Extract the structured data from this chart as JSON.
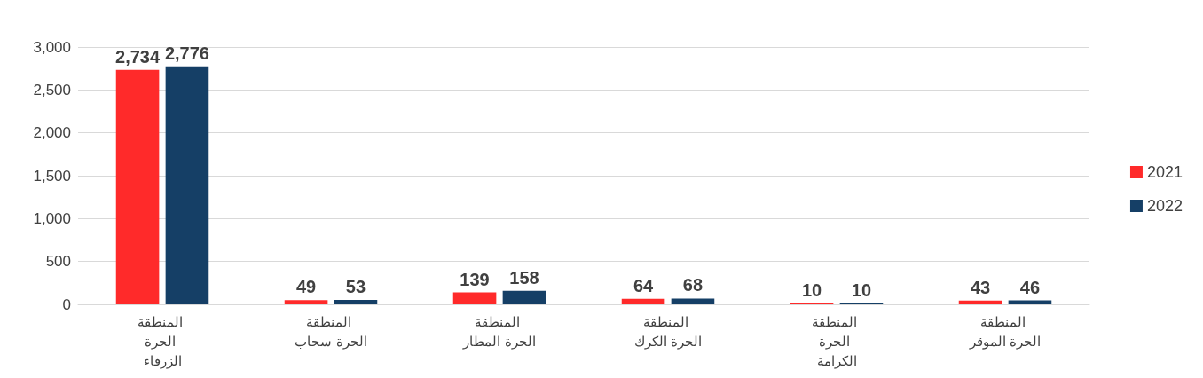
{
  "chart_data": {
    "type": "bar",
    "categories": [
      "المنطقة الحرة الزرقاء",
      "المنطقة الحرة سحاب",
      "المنطقة الحرة المطار",
      "المنطقة الحرة الكرك",
      "المنطقة الحرة الكرامة",
      "المنطقة الحرة الموقر"
    ],
    "series": [
      {
        "name": "2021",
        "color": "#ff2a2a",
        "values": [
          2734,
          49,
          139,
          64,
          10,
          43
        ],
        "value_labels": [
          "2,734",
          "49",
          "139",
          "64",
          "10",
          "43"
        ]
      },
      {
        "name": "2022",
        "color": "#153f66",
        "values": [
          2776,
          53,
          158,
          68,
          10,
          46
        ],
        "value_labels": [
          "2,776",
          "53",
          "158",
          "68",
          "10",
          "46"
        ]
      }
    ],
    "ylim": [
      0,
      3000
    ],
    "yticks": [
      0,
      500,
      {
        "value": 1000,
        "label": "1,000"
      },
      {
        "value": 1500,
        "label": "1,500"
      },
      {
        "value": 2000,
        "label": "2,000"
      },
      {
        "value": 2500,
        "label": "2,500"
      },
      {
        "value": 3000,
        "label": "3,000"
      }
    ],
    "grid": "y",
    "legend": "right"
  }
}
